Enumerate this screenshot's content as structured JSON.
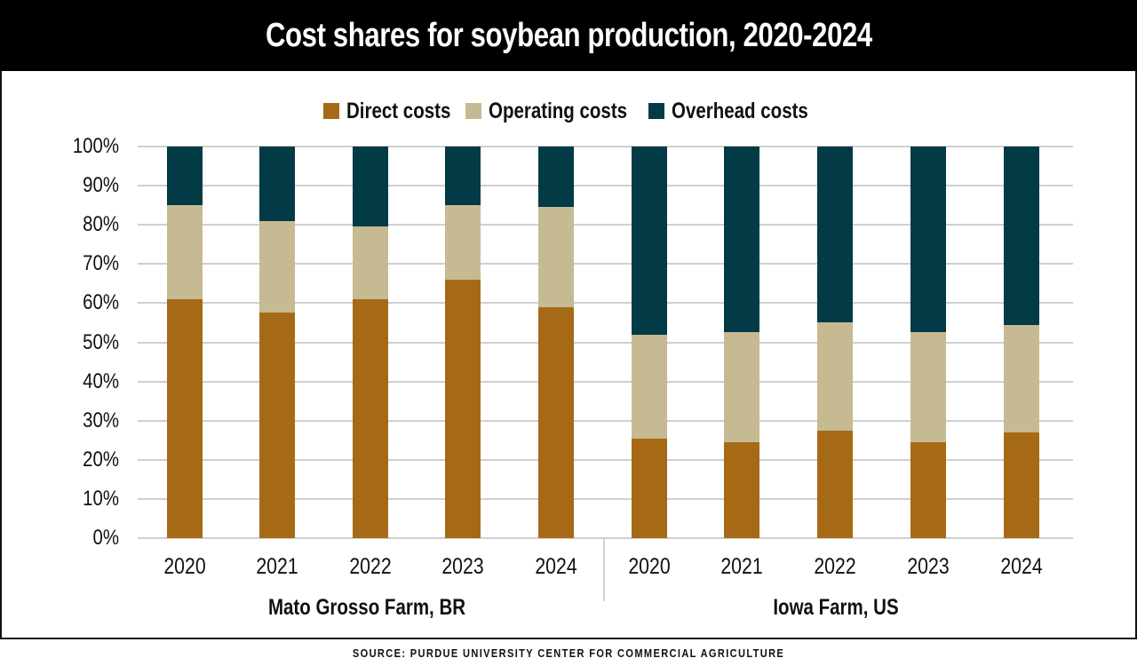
{
  "header": {
    "title": "Cost shares for soybean production, 2020-2024"
  },
  "legend": {
    "items": [
      {
        "label": "Direct costs",
        "color": "#A66A16"
      },
      {
        "label": "Operating costs",
        "color": "#C6BA92"
      },
      {
        "label": "Overhead costs",
        "color": "#023A46"
      }
    ]
  },
  "axis": {
    "y_ticks": [
      "0%",
      "10%",
      "20%",
      "30%",
      "40%",
      "50%",
      "60%",
      "70%",
      "80%",
      "90%",
      "100%"
    ]
  },
  "groups": [
    {
      "label": "Mato Grosso Farm, BR",
      "years": [
        "2020",
        "2021",
        "2022",
        "2023",
        "2024"
      ]
    },
    {
      "label": "Iowa Farm, US",
      "years": [
        "2020",
        "2021",
        "2022",
        "2023",
        "2024"
      ]
    }
  ],
  "footer": {
    "source": "SOURCE: PURDUE UNIVERSITY CENTER FOR COMMERCIAL AGRICULTURE"
  },
  "chart_data": {
    "type": "bar",
    "stacked": true,
    "percent": true,
    "title": "Cost shares for soybean production, 2020-2024",
    "xlabel": "",
    "ylabel": "",
    "ylim": [
      0,
      100
    ],
    "grid": true,
    "legend_position": "top",
    "categories": [
      "Mato Grosso Farm, BR 2020",
      "Mato Grosso Farm, BR 2021",
      "Mato Grosso Farm, BR 2022",
      "Mato Grosso Farm, BR 2023",
      "Mato Grosso Farm, BR 2024",
      "Iowa Farm, US 2020",
      "Iowa Farm, US 2021",
      "Iowa Farm, US 2022",
      "Iowa Farm, US 2023",
      "Iowa Farm, US 2024"
    ],
    "category_groups": [
      {
        "label": "Mato Grosso Farm, BR",
        "x": [
          "2020",
          "2021",
          "2022",
          "2023",
          "2024"
        ]
      },
      {
        "label": "Iowa Farm, US",
        "x": [
          "2020",
          "2021",
          "2022",
          "2023",
          "2024"
        ]
      }
    ],
    "series": [
      {
        "name": "Direct costs",
        "color": "#A66A16",
        "values": [
          61,
          57.5,
          61,
          66,
          59,
          25.5,
          24.5,
          27.5,
          24.5,
          27
        ]
      },
      {
        "name": "Operating costs",
        "color": "#C6BA92",
        "values": [
          24,
          23.5,
          18.5,
          19,
          25.5,
          26.5,
          28,
          27.5,
          28,
          27.5
        ]
      },
      {
        "name": "Overhead costs",
        "color": "#023A46",
        "values": [
          15,
          19,
          20.5,
          15,
          15.5,
          48,
          47.5,
          45,
          47.5,
          45.5
        ]
      }
    ],
    "y_ticks": [
      "0%",
      "10%",
      "20%",
      "30%",
      "40%",
      "50%",
      "60%",
      "70%",
      "80%",
      "90%",
      "100%"
    ],
    "source": "SOURCE: PURDUE UNIVERSITY CENTER FOR COMMERCIAL AGRICULTURE"
  }
}
